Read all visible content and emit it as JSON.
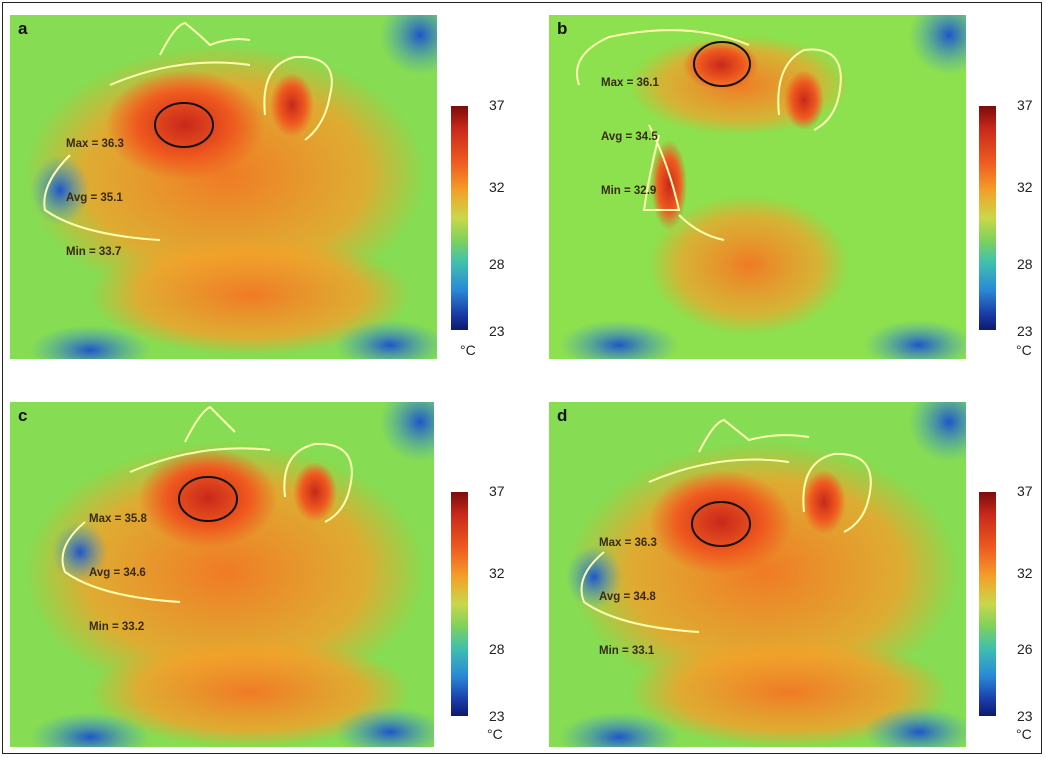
{
  "panels": [
    {
      "letter": "a",
      "max": "Max = 36.3",
      "avg": "Avg = 35.1",
      "min": "Min = 33.7",
      "ticks": [
        "37",
        "32",
        "28",
        "23"
      ],
      "unit": "°C"
    },
    {
      "letter": "b",
      "max": "Max = 36.1",
      "avg": "Avg = 34.5",
      "min": "Min = 32.9",
      "ticks": [
        "37",
        "32",
        "28",
        "23"
      ],
      "unit": "°C"
    },
    {
      "letter": "c",
      "max": "Max = 35.8",
      "avg": "Avg = 34.6",
      "min": "Min = 33.2",
      "ticks": [
        "37",
        "32",
        "28",
        "23"
      ],
      "unit": "°C"
    },
    {
      "letter": "d",
      "max": "Max = 36.3",
      "avg": "Avg = 34.8",
      "min": "Min = 33.1",
      "ticks": [
        "37",
        "32",
        "26",
        "23"
      ],
      "unit": "°C"
    }
  ],
  "colors": {
    "hot": "#c8281a",
    "warm": "#f07a25",
    "mid": "#8fe04c",
    "cool": "#2a8ad6",
    "cold": "#0d1a6e"
  }
}
